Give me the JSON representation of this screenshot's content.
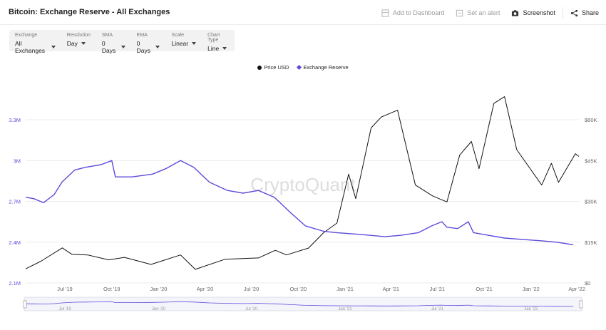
{
  "header": {
    "title": "Bitcoin: Exchange Reserve - All Exchanges",
    "add_dashboard": "Add to Dashboard",
    "set_alert": "Set an alert",
    "screenshot": "Screenshot",
    "share": "Share"
  },
  "controls": [
    {
      "label": "Exchange",
      "value": "All Exchanges"
    },
    {
      "label": "Resolution",
      "value": "Day"
    },
    {
      "label": "SMA",
      "value": "0 Days"
    },
    {
      "label": "EMA",
      "value": "0 Days"
    },
    {
      "label": "Scale",
      "value": "Linear"
    },
    {
      "label": "Chart Type",
      "value": "Line"
    }
  ],
  "watermark": "CryptoQuant",
  "chart_data": {
    "type": "line",
    "legend_position": "top-center",
    "grid": "horizontal",
    "x_tick_labels": [
      "Jul '19",
      "Oct '19",
      "Jan '20",
      "Apr '20",
      "Jul '20",
      "Oct '20",
      "Jan '21",
      "Apr '21",
      "Jul '21",
      "Oct '21",
      "Jan '22",
      "Apr '22"
    ],
    "x_tick_dates": [
      "2019-07-01",
      "2019-10-01",
      "2020-01-01",
      "2020-04-01",
      "2020-07-01",
      "2020-10-01",
      "2021-01-01",
      "2021-04-01",
      "2021-07-01",
      "2021-10-01",
      "2022-01-01",
      "2022-04-01"
    ],
    "x_range": [
      "2019-04-15",
      "2022-04-05"
    ],
    "y_left": {
      "ticks": [
        "2.1M",
        "2.4M",
        "2.7M",
        "3M",
        "3.3M"
      ],
      "tick_values": [
        2100000,
        2400000,
        2700000,
        3000000,
        3300000
      ],
      "range": [
        2100000,
        3300000
      ],
      "color": "#5b4cdb"
    },
    "y_right": {
      "ticks": [
        "$0",
        "$15K",
        "$30K",
        "$45K",
        "$60K"
      ],
      "tick_values": [
        0,
        15000,
        30000,
        45000,
        60000
      ],
      "range": [
        0,
        60000
      ]
    },
    "series": [
      {
        "name": "Price USD",
        "axis": "right",
        "color": "#111111",
        "x": [
          "2019-04-15",
          "2019-05-15",
          "2019-06-26",
          "2019-07-15",
          "2019-08-15",
          "2019-09-25",
          "2019-10-26",
          "2019-12-17",
          "2020-02-13",
          "2020-03-13",
          "2020-05-10",
          "2020-07-15",
          "2020-08-17",
          "2020-09-08",
          "2020-10-21",
          "2020-11-20",
          "2020-12-16",
          "2021-01-08",
          "2021-01-22",
          "2021-02-21",
          "2021-03-13",
          "2021-04-14",
          "2021-05-19",
          "2021-06-22",
          "2021-07-20",
          "2021-08-14",
          "2021-09-06",
          "2021-09-21",
          "2021-10-20",
          "2021-11-10",
          "2021-12-04",
          "2022-01-22",
          "2022-02-10",
          "2022-02-24",
          "2022-03-29",
          "2022-04-05"
        ],
        "values": [
          5200,
          8000,
          12900,
          10500,
          10300,
          8500,
          9400,
          6800,
          10300,
          5000,
          8700,
          9200,
          12000,
          10300,
          12800,
          18500,
          22000,
          40000,
          31000,
          57000,
          61000,
          63500,
          36000,
          32000,
          29800,
          47000,
          52000,
          42000,
          66000,
          68500,
          49000,
          36000,
          44000,
          37000,
          47500,
          46500
        ]
      },
      {
        "name": "Exchange Reserve",
        "axis": "left",
        "color": "#5b4cdb",
        "x": [
          "2019-04-15",
          "2019-05-01",
          "2019-05-20",
          "2019-06-10",
          "2019-06-25",
          "2019-07-20",
          "2019-08-10",
          "2019-09-10",
          "2019-10-01",
          "2019-10-08",
          "2019-11-10",
          "2019-12-20",
          "2020-01-15",
          "2020-02-13",
          "2020-03-10",
          "2020-04-10",
          "2020-05-15",
          "2020-06-15",
          "2020-07-15",
          "2020-08-15",
          "2020-09-15",
          "2020-10-15",
          "2020-11-20",
          "2020-12-15",
          "2021-01-20",
          "2021-02-20",
          "2021-03-20",
          "2021-04-20",
          "2021-05-25",
          "2021-06-20",
          "2021-07-10",
          "2021-07-20",
          "2021-08-10",
          "2021-08-31",
          "2021-09-10",
          "2021-10-10",
          "2021-11-10",
          "2021-12-15",
          "2022-01-20",
          "2022-02-20",
          "2022-03-10",
          "2022-03-25"
        ],
        "values": [
          2730000,
          2720000,
          2690000,
          2750000,
          2840000,
          2930000,
          2950000,
          2970000,
          3000000,
          2880000,
          2880000,
          2900000,
          2940000,
          3000000,
          2950000,
          2840000,
          2780000,
          2760000,
          2780000,
          2730000,
          2620000,
          2520000,
          2480000,
          2470000,
          2460000,
          2450000,
          2440000,
          2450000,
          2470000,
          2520000,
          2550000,
          2510000,
          2500000,
          2550000,
          2470000,
          2450000,
          2430000,
          2420000,
          2410000,
          2400000,
          2390000,
          2380000
        ]
      }
    ]
  }
}
